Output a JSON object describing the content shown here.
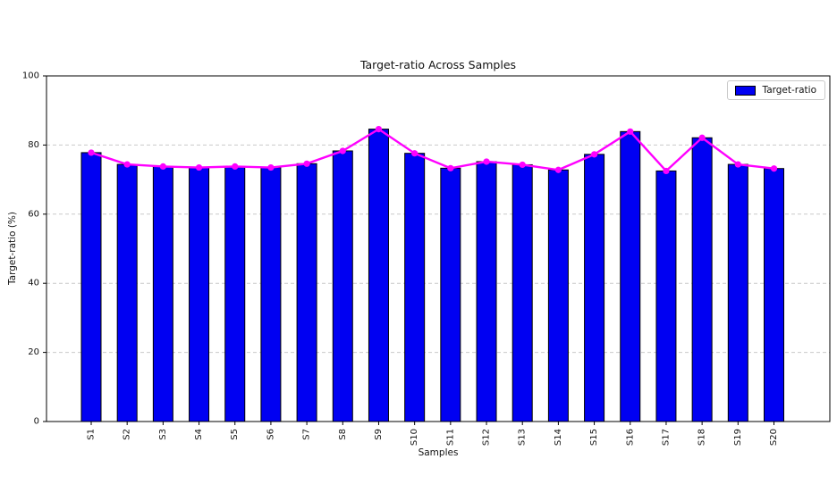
{
  "chart_data": {
    "type": "bar",
    "title": "Target-ratio Across Samples",
    "xlabel": "Samples",
    "ylabel": "Target-ratio (%)",
    "categories": [
      "S1",
      "S2",
      "S3",
      "S4",
      "S5",
      "S6",
      "S7",
      "S8",
      "S9",
      "S10",
      "S11",
      "S12",
      "S13",
      "S14",
      "S15",
      "S16",
      "S17",
      "S18",
      "S19",
      "S20"
    ],
    "series": [
      {
        "name": "Target-ratio",
        "type": "bar",
        "values": [
          77.8,
          74.4,
          73.8,
          73.5,
          73.8,
          73.5,
          74.6,
          78.3,
          84.6,
          77.6,
          73.3,
          75.2,
          74.3,
          72.8,
          77.3,
          83.9,
          72.5,
          82.1,
          74.4,
          73.2
        ]
      },
      {
        "name": "Target-ratio",
        "type": "line",
        "values": [
          77.8,
          74.4,
          73.8,
          73.5,
          73.8,
          73.5,
          74.6,
          78.3,
          84.6,
          77.6,
          73.3,
          75.2,
          74.3,
          72.8,
          77.3,
          83.9,
          72.5,
          82.1,
          74.4,
          73.2
        ]
      }
    ],
    "ylim": [
      0,
      100
    ],
    "yticks": [
      0,
      20,
      40,
      60,
      80,
      100
    ],
    "grid": {
      "axis": "y",
      "style": "dashed",
      "gridline_values": [
        20,
        40,
        60,
        80
      ]
    },
    "legend": {
      "label": "Target-ratio",
      "position": "upper right"
    },
    "colors": {
      "bar": "#0000f2",
      "bar_edge": "#000000",
      "line": "#ff00ff",
      "marker": "#ff00ff",
      "gridline": "#c9c9c9",
      "spine": "#000000",
      "text": "#111111"
    }
  }
}
